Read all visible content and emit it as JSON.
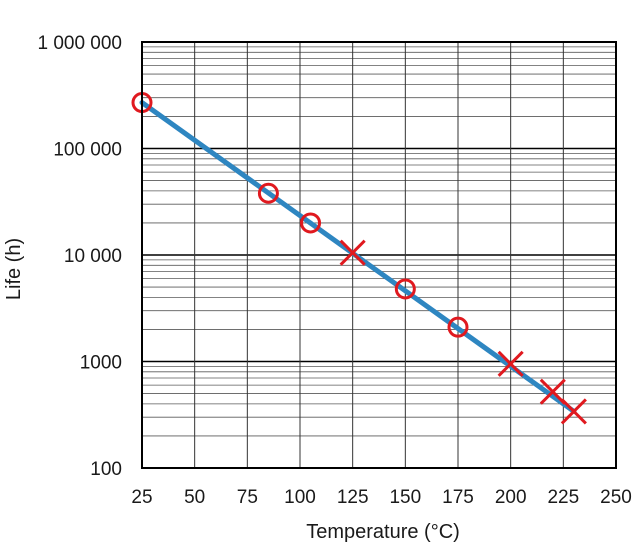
{
  "chart_data": {
    "type": "line",
    "title": "",
    "xlabel": "Temperature (°C)",
    "ylabel": "Life (h)",
    "x_scale": "linear",
    "y_scale": "log",
    "xlim": [
      25,
      250
    ],
    "ylim": [
      100,
      1000000
    ],
    "x_ticks": [
      25,
      50,
      75,
      100,
      125,
      150,
      175,
      200,
      225,
      250
    ],
    "x_tick_labels": [
      "25",
      "50",
      "75",
      "100",
      "125",
      "150",
      "175",
      "200",
      "225",
      "250"
    ],
    "y_ticks": [
      100,
      1000,
      10000,
      100000,
      1000000
    ],
    "y_tick_labels": [
      "100",
      "1000",
      "10 000",
      "100 000",
      "1 000 000"
    ],
    "grid": true,
    "legend": "none",
    "series": [
      {
        "kind": "line",
        "color": "#2e86c1",
        "points": [
          [
            25,
            270000
          ],
          [
            230,
            340
          ]
        ]
      },
      {
        "kind": "circle-markers",
        "color": "#e0191f",
        "points": [
          [
            25,
            270000
          ],
          [
            85,
            38000
          ],
          [
            105,
            20000
          ],
          [
            150,
            4800
          ],
          [
            175,
            2100
          ]
        ]
      },
      {
        "kind": "x-markers",
        "color": "#e0191f",
        "points": [
          [
            125,
            10500
          ],
          [
            200,
            950
          ],
          [
            220,
            520
          ],
          [
            230,
            340
          ]
        ]
      }
    ]
  }
}
